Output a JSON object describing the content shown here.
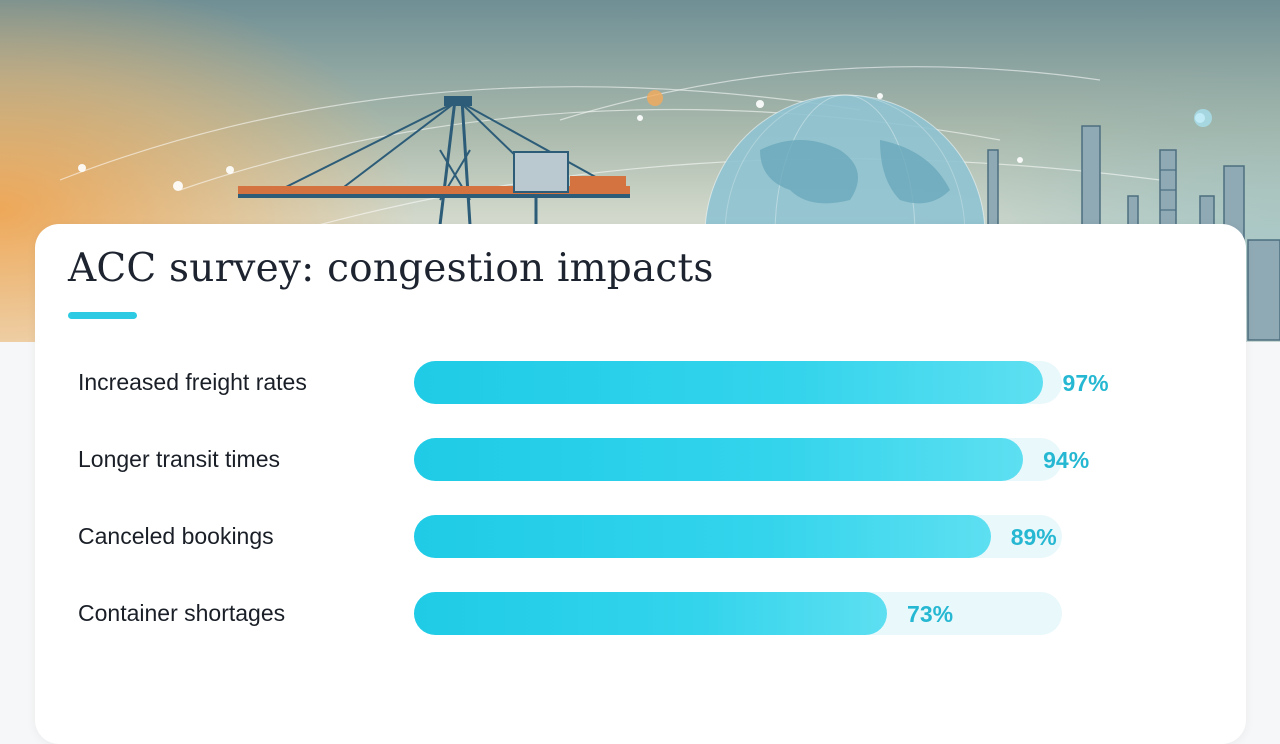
{
  "chart_data": {
    "type": "bar",
    "orientation": "horizontal",
    "title": "ACC survey: congestion impacts",
    "categories": [
      "Increased freight rates",
      "Longer transit times",
      "Canceled bookings",
      "Container shortages"
    ],
    "values": [
      97,
      94,
      89,
      73
    ],
    "value_labels": [
      "97%",
      "94%",
      "89%",
      "73%"
    ],
    "xlim": [
      0,
      100
    ],
    "grid": false,
    "legend": "none"
  },
  "colors": {
    "bar": "#2ccbe3",
    "track": "#e9f8fb",
    "value_text": "#26b8d2",
    "title_text": "#1d2430",
    "accent": "#2ccbe3"
  },
  "hero": {
    "icons": [
      "crane-icon",
      "globe-icon",
      "refinery-icon"
    ]
  }
}
